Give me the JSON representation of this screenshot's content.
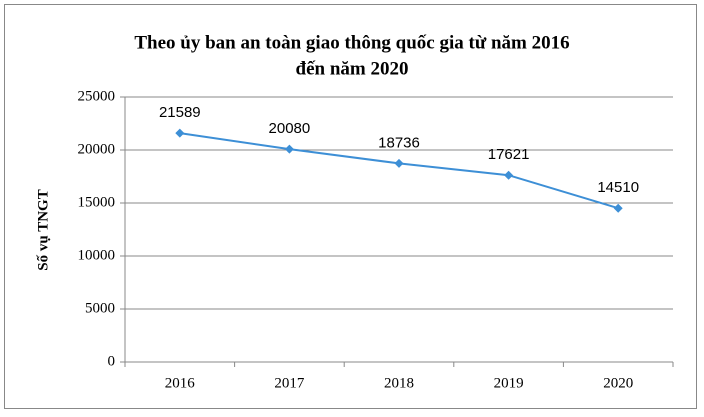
{
  "chart_data": {
    "type": "line",
    "title": [
      "Theo ủy ban an toàn giao thông quốc gia từ năm 2016",
      "đến năm 2020"
    ],
    "y_label": "Số vụ TNGT",
    "categories": [
      "2016",
      "2017",
      "2018",
      "2019",
      "2020"
    ],
    "values": [
      21589,
      20080,
      18736,
      17621,
      14510
    ],
    "color": "#3d8fd6",
    "ylim": [
      0,
      25000
    ],
    "yticks": [
      0,
      5000,
      10000,
      15000,
      20000,
      25000
    ],
    "grid": true
  }
}
